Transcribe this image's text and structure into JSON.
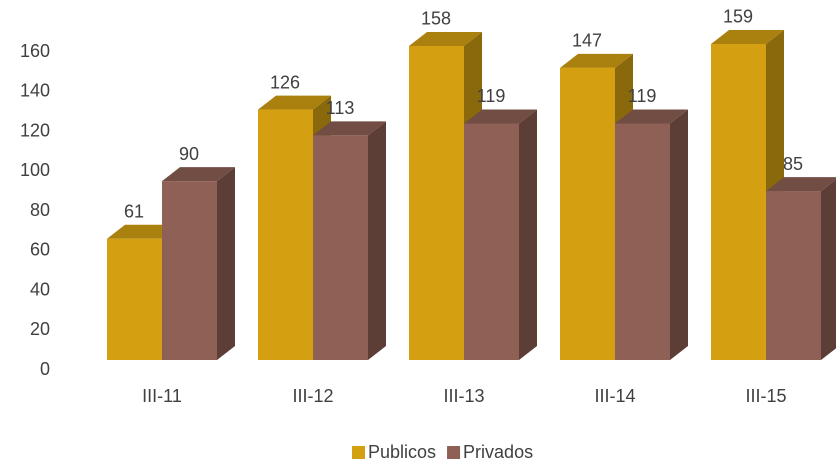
{
  "chart_data": {
    "type": "bar3d",
    "categories": [
      "III-11",
      "III-12",
      "III-13",
      "III-14",
      "III-15"
    ],
    "series": [
      {
        "name": "Publicos",
        "color": "#d4a012",
        "values": [
          61,
          126,
          158,
          147,
          159
        ]
      },
      {
        "name": "Privados",
        "color": "#8f6055",
        "values": [
          90,
          113,
          119,
          119,
          85
        ]
      }
    ],
    "ylim": [
      0,
      160
    ],
    "yticks": [
      0,
      20,
      40,
      60,
      80,
      100,
      120,
      140,
      160
    ],
    "legend": "bottom"
  }
}
